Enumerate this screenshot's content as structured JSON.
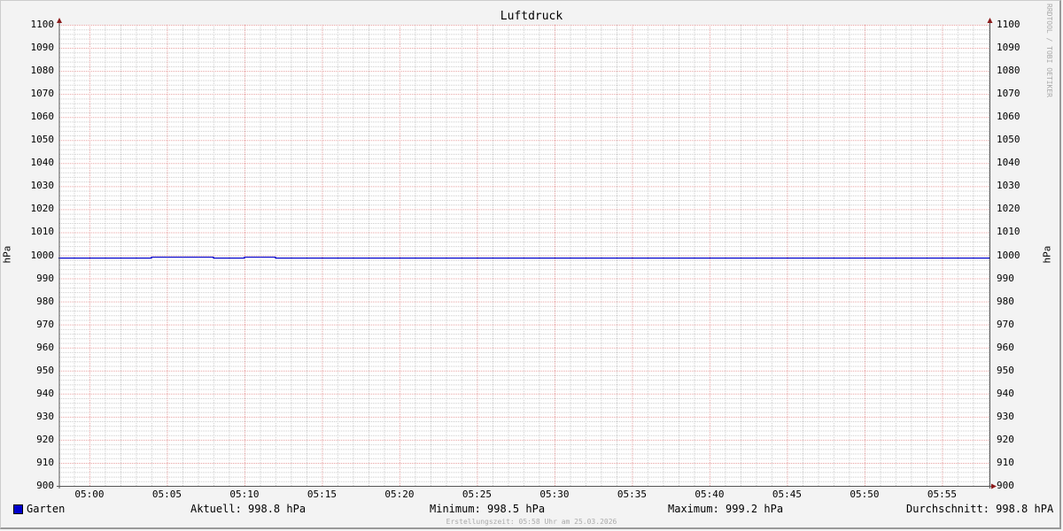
{
  "chart_data": {
    "type": "line",
    "title": "Luftdruck",
    "ylabel": "hPa",
    "ylabel_right": "hPa",
    "ylim": [
      900,
      1100
    ],
    "y_ticks": [
      900,
      910,
      920,
      930,
      940,
      950,
      960,
      970,
      980,
      990,
      1000,
      1010,
      1020,
      1030,
      1040,
      1050,
      1060,
      1070,
      1080,
      1090,
      1100
    ],
    "xlim": [
      "04:58",
      "05:58"
    ],
    "x_ticks": [
      "05:00",
      "05:05",
      "05:10",
      "05:15",
      "05:20",
      "05:25",
      "05:30",
      "05:35",
      "05:40",
      "05:45",
      "05:50",
      "05:55"
    ],
    "grid": true,
    "legend_placement": "bottom",
    "series": [
      {
        "name": "Garten",
        "color": "#0000cc",
        "step": true,
        "points": [
          [
            "04:58",
            998.8
          ],
          [
            "05:04",
            999.2
          ],
          [
            "05:08",
            998.8
          ],
          [
            "05:10",
            999.2
          ],
          [
            "05:12",
            998.8
          ],
          [
            "05:58",
            998.8
          ]
        ]
      }
    ]
  },
  "legend": {
    "series_name": "Garten",
    "current": "Aktuell: 998.8 hPa",
    "minimum": "Minimum: 998.5 hPa",
    "maximum": "Maximum: 999.2 hPa",
    "average": "Durchschnitt: 998.8 hPA"
  },
  "credit": "RRDTOOL / TOBI OETIKER",
  "footer": "Erstellungszeit: 05:58 Uhr am 25.03.2026"
}
